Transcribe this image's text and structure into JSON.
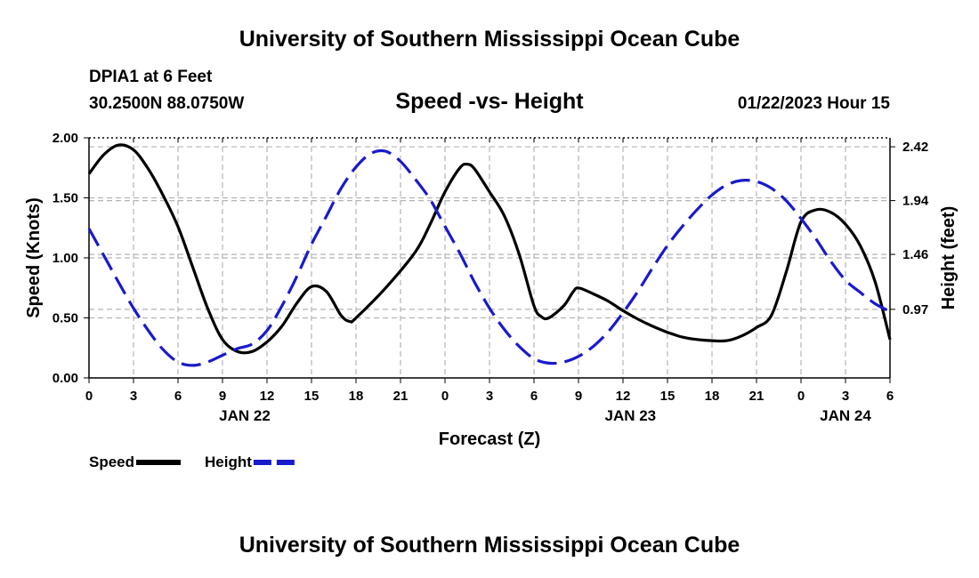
{
  "header": {
    "title": "University of Southern Mississippi Ocean Cube",
    "station": "DPIA1 at 6 Feet",
    "coords": "30.2500N  88.0750W",
    "subtitle": "Speed -vs- Height",
    "datestamp": "01/22/2023 Hour 15"
  },
  "footer": {
    "title": "University of Southern Mississippi Ocean Cube"
  },
  "colors": {
    "speed": "#000000",
    "height": "#1a1acc",
    "grid": "#b4b4b4"
  },
  "chart_data": {
    "type": "line",
    "title": "Speed -vs- Height",
    "xlabel": "Forecast (Z)",
    "ylabel": "Speed (Knots)",
    "y2label": "Height (feet)",
    "x_range": [
      0,
      54
    ],
    "x_ticks": [
      {
        "x": 0,
        "label": "0"
      },
      {
        "x": 3,
        "label": "3"
      },
      {
        "x": 6,
        "label": "6"
      },
      {
        "x": 9,
        "label": "9"
      },
      {
        "x": 12,
        "label": "12"
      },
      {
        "x": 15,
        "label": "15"
      },
      {
        "x": 18,
        "label": "18"
      },
      {
        "x": 21,
        "label": "21"
      },
      {
        "x": 24,
        "label": "0"
      },
      {
        "x": 27,
        "label": "3"
      },
      {
        "x": 30,
        "label": "6"
      },
      {
        "x": 33,
        "label": "9"
      },
      {
        "x": 36,
        "label": "12"
      },
      {
        "x": 39,
        "label": "15"
      },
      {
        "x": 42,
        "label": "18"
      },
      {
        "x": 45,
        "label": "21"
      },
      {
        "x": 48,
        "label": "0"
      },
      {
        "x": 51,
        "label": "3"
      },
      {
        "x": 54,
        "label": "6"
      }
    ],
    "date_labels": [
      {
        "x": 10.5,
        "label": "JAN 22"
      },
      {
        "x": 36.5,
        "label": "JAN 23"
      },
      {
        "x": 51,
        "label": "JAN 24"
      }
    ],
    "y_range": [
      0,
      2.0
    ],
    "y_ticks": [
      {
        "value": 0,
        "label": "0.00"
      },
      {
        "value": 0.5,
        "label": "0.50"
      },
      {
        "value": 1.0,
        "label": "1.00"
      },
      {
        "value": 1.5,
        "label": "1.50"
      },
      {
        "value": 2.0,
        "label": "2.00"
      }
    ],
    "y2_range": [
      0.358,
      2.5
    ],
    "y2_ticks": [
      {
        "value": 0.97,
        "label": "0.97"
      },
      {
        "value": 1.46,
        "label": "1.46"
      },
      {
        "value": 1.94,
        "label": "1.94"
      },
      {
        "value": 2.42,
        "label": "2.42"
      }
    ],
    "series": [
      {
        "name": "Speed",
        "axis": "left",
        "style": "solid",
        "points": [
          [
            0,
            1.7
          ],
          [
            1,
            1.86
          ],
          [
            2,
            1.94
          ],
          [
            3,
            1.9
          ],
          [
            4,
            1.74
          ],
          [
            5,
            1.52
          ],
          [
            6,
            1.26
          ],
          [
            7,
            0.92
          ],
          [
            8,
            0.58
          ],
          [
            9,
            0.32
          ],
          [
            10,
            0.22
          ],
          [
            11,
            0.22
          ],
          [
            12,
            0.3
          ],
          [
            13,
            0.43
          ],
          [
            14,
            0.62
          ],
          [
            15,
            0.76
          ],
          [
            16,
            0.72
          ],
          [
            17,
            0.52
          ],
          [
            17.6,
            0.47
          ],
          [
            18,
            0.5
          ],
          [
            20,
            0.75
          ],
          [
            22,
            1.05
          ],
          [
            23,
            1.28
          ],
          [
            24,
            1.55
          ],
          [
            25,
            1.75
          ],
          [
            25.5,
            1.78
          ],
          [
            26,
            1.74
          ],
          [
            27,
            1.55
          ],
          [
            28,
            1.35
          ],
          [
            29,
            1.03
          ],
          [
            30,
            0.6
          ],
          [
            30.5,
            0.51
          ],
          [
            31,
            0.5
          ],
          [
            32,
            0.6
          ],
          [
            32.6,
            0.71
          ],
          [
            33,
            0.75
          ],
          [
            34,
            0.7
          ],
          [
            35,
            0.64
          ],
          [
            36,
            0.56
          ],
          [
            37,
            0.49
          ],
          [
            38,
            0.43
          ],
          [
            39,
            0.38
          ],
          [
            40,
            0.34
          ],
          [
            41,
            0.32
          ],
          [
            42,
            0.31
          ],
          [
            43,
            0.31
          ],
          [
            44,
            0.35
          ],
          [
            45,
            0.42
          ],
          [
            46,
            0.52
          ],
          [
            47,
            0.88
          ],
          [
            48,
            1.3
          ],
          [
            49,
            1.4
          ],
          [
            50,
            1.38
          ],
          [
            51,
            1.28
          ],
          [
            52,
            1.1
          ],
          [
            53,
            0.8
          ],
          [
            54,
            0.32
          ]
        ]
      },
      {
        "name": "Height",
        "axis": "right",
        "style": "dashed",
        "points": [
          [
            0,
            1.69
          ],
          [
            1,
            1.45
          ],
          [
            2,
            1.21
          ],
          [
            3,
            0.98
          ],
          [
            4,
            0.78
          ],
          [
            5,
            0.61
          ],
          [
            6,
            0.5
          ],
          [
            7,
            0.47
          ],
          [
            8,
            0.5
          ],
          [
            9,
            0.56
          ],
          [
            10,
            0.62
          ],
          [
            11,
            0.66
          ],
          [
            12,
            0.78
          ],
          [
            13,
            1.0
          ],
          [
            14,
            1.26
          ],
          [
            15,
            1.55
          ],
          [
            16,
            1.8
          ],
          [
            17,
            2.05
          ],
          [
            18,
            2.24
          ],
          [
            19,
            2.36
          ],
          [
            20,
            2.38
          ],
          [
            21,
            2.29
          ],
          [
            22,
            2.13
          ],
          [
            23,
            1.95
          ],
          [
            24,
            1.71
          ],
          [
            25,
            1.47
          ],
          [
            26,
            1.21
          ],
          [
            27,
            0.98
          ],
          [
            28,
            0.79
          ],
          [
            29,
            0.64
          ],
          [
            30,
            0.53
          ],
          [
            31,
            0.49
          ],
          [
            32,
            0.5
          ],
          [
            33,
            0.55
          ],
          [
            34,
            0.64
          ],
          [
            35,
            0.77
          ],
          [
            36,
            0.94
          ],
          [
            37,
            1.13
          ],
          [
            38,
            1.34
          ],
          [
            39,
            1.54
          ],
          [
            40,
            1.71
          ],
          [
            41,
            1.86
          ],
          [
            42,
            1.99
          ],
          [
            43,
            2.08
          ],
          [
            44,
            2.12
          ],
          [
            45,
            2.11
          ],
          [
            46,
            2.05
          ],
          [
            47,
            1.94
          ],
          [
            48,
            1.78
          ],
          [
            49,
            1.6
          ],
          [
            50,
            1.4
          ],
          [
            51,
            1.23
          ],
          [
            52,
            1.12
          ],
          [
            53,
            1.02
          ],
          [
            54,
            0.95
          ]
        ]
      }
    ],
    "legend": [
      {
        "name": "Speed",
        "style": "solid"
      },
      {
        "name": "Height",
        "style": "dashed"
      }
    ],
    "legend_position": "bottom-left",
    "grid": true
  }
}
